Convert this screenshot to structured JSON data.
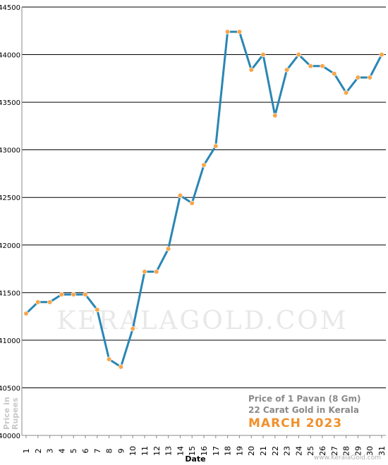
{
  "chart_data": {
    "type": "line",
    "xlabel": "Date",
    "ylabel": "Price in Rupees",
    "ylim": [
      40000,
      44500
    ],
    "yticks": [
      40000,
      40500,
      41000,
      41500,
      42000,
      42500,
      43000,
      43500,
      44000,
      44500
    ],
    "categories": [
      "1",
      "2",
      "3",
      "4",
      "5",
      "6",
      "7",
      "8",
      "9",
      "10",
      "11",
      "12",
      "13",
      "14",
      "15",
      "16",
      "17",
      "18",
      "19",
      "20",
      "21",
      "22",
      "23",
      "24",
      "25",
      "26",
      "27",
      "28",
      "29",
      "30",
      "31"
    ],
    "series": [
      {
        "values": [
          41280,
          41400,
          41400,
          41480,
          41480,
          41480,
          41320,
          40800,
          40720,
          41120,
          41720,
          41720,
          41960,
          42520,
          42440,
          42840,
          43040,
          44240,
          44240,
          43840,
          44000,
          43360,
          43840,
          44000,
          43880,
          43880,
          43800,
          43600,
          43760,
          43760,
          44000
        ]
      }
    ],
    "grid": true,
    "line_color": "#2a86b4",
    "marker_color": "#f7a64a",
    "annotations": [
      "Price of 1 Pavan (8 Gm)",
      "22 Carat Gold in Kerala",
      "MARCH 2023"
    ],
    "watermark": "KERALAGOLD.COM",
    "site": "www.KeralaGold.com"
  }
}
